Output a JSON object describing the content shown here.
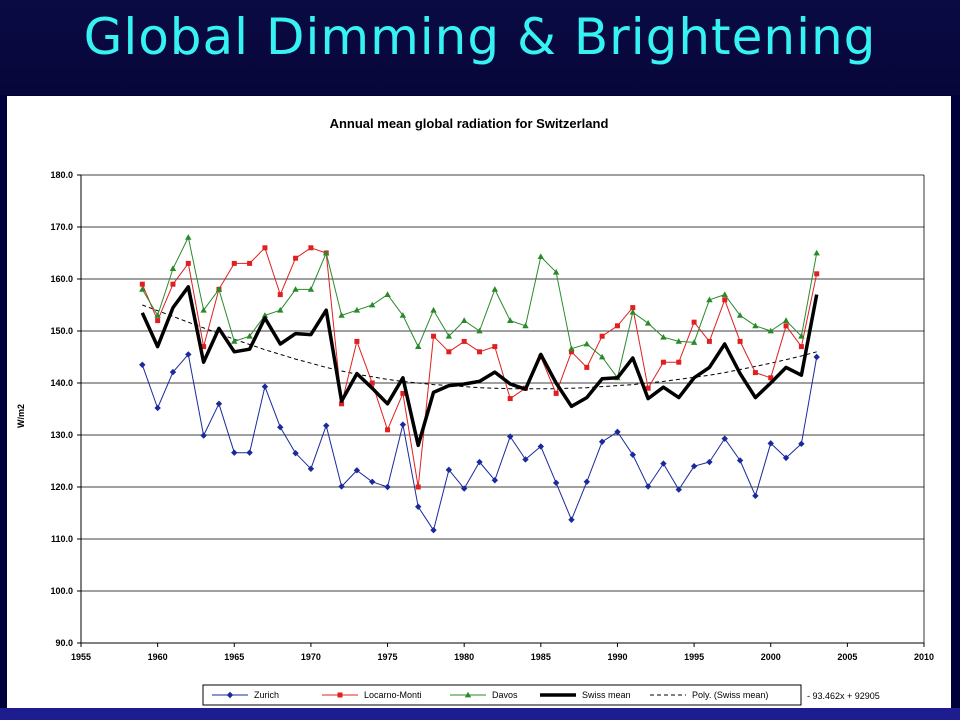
{
  "slide": {
    "title": "Global Dimming & Brightening"
  },
  "chart_data": {
    "type": "line",
    "title": "Annual mean global radiation for Switzerland",
    "xlabel": "",
    "ylabel": "W/m2",
    "xlim": [
      1955,
      2010
    ],
    "ylim": [
      90,
      180
    ],
    "x_ticks": [
      "1955",
      "1960",
      "1965",
      "1970",
      "1975",
      "1980",
      "1985",
      "1990",
      "1995",
      "2000",
      "2005",
      "2010"
    ],
    "y_ticks": [
      "90.0",
      "100.0",
      "110.0",
      "120.0",
      "130.0",
      "140.0",
      "150.0",
      "160.0",
      "170.0",
      "180.0"
    ],
    "grid": "horizontal",
    "legend_position": "bottom",
    "x": [
      1959,
      1960,
      1961,
      1962,
      1963,
      1964,
      1965,
      1966,
      1967,
      1968,
      1969,
      1970,
      1971,
      1972,
      1973,
      1974,
      1975,
      1976,
      1977,
      1978,
      1979,
      1980,
      1981,
      1982,
      1983,
      1984,
      1985,
      1986,
      1987,
      1988,
      1989,
      1990,
      1991,
      1992,
      1993,
      1994,
      1995,
      1996,
      1997,
      1998,
      1999,
      2000,
      2001,
      2002,
      2003
    ],
    "series": [
      {
        "name": "Zurich",
        "color": "#1a2a9c",
        "marker": "diamond",
        "width": 1,
        "values": [
          143.5,
          135.2,
          142.1,
          145.5,
          129.9,
          136.0,
          126.6,
          126.6,
          139.3,
          131.5,
          126.5,
          123.5,
          131.8,
          120.1,
          123.2,
          121.0,
          120.0,
          132.0,
          116.2,
          111.7,
          123.3,
          119.7,
          124.8,
          121.3,
          129.7,
          125.3,
          127.8,
          120.8,
          113.7,
          121.0,
          128.7,
          130.6,
          126.2,
          120.1,
          124.5,
          119.5,
          124.0,
          124.8,
          129.3,
          125.1,
          118.3,
          128.4,
          125.6,
          128.3,
          145.0
        ]
      },
      {
        "name": "Locarno-Monti",
        "color": "#e02020",
        "marker": "square",
        "width": 1,
        "values": [
          159.0,
          152.0,
          159.0,
          163.0,
          147.0,
          158.0,
          163.0,
          163.0,
          166.0,
          157.0,
          164.0,
          166.0,
          165.0,
          136.0,
          148.0,
          140.0,
          131.0,
          138.0,
          120.0,
          149.0,
          146.0,
          148.0,
          146.0,
          147.0,
          137.0,
          139.0,
          145.0,
          138.0,
          146.0,
          143.0,
          149.0,
          151.0,
          154.5,
          139.0,
          144.0,
          144.0,
          151.7,
          148.0,
          156.0,
          148.0,
          142.0,
          141.0,
          151.0,
          147.0,
          161.0
        ]
      },
      {
        "name": "Davos",
        "color": "#2a8a2a",
        "marker": "triangle",
        "width": 1,
        "values": [
          158.0,
          153.0,
          162.0,
          168.0,
          154.0,
          158.0,
          148.0,
          149.0,
          153.0,
          154.0,
          158.0,
          158.0,
          165.0,
          153.0,
          154.0,
          155.0,
          157.0,
          153.0,
          147.0,
          154.0,
          149.0,
          152.0,
          150.0,
          158.0,
          152.0,
          151.0,
          164.3,
          161.3,
          146.6,
          147.5,
          145.0,
          141.0,
          153.6,
          151.5,
          148.8,
          148.0,
          147.8,
          156.0,
          157.0,
          153.0,
          151.0,
          150.0,
          152.0,
          149.0,
          165.0
        ]
      },
      {
        "name": "Swiss mean",
        "color": "#000000",
        "marker": "none",
        "width": 3.5,
        "values": [
          153.5,
          147.0,
          154.5,
          158.5,
          144.0,
          150.5,
          146.0,
          146.5,
          152.5,
          147.5,
          149.5,
          149.3,
          154.0,
          136.5,
          141.8,
          139.0,
          136.0,
          141.0,
          128.0,
          138.2,
          139.5,
          139.8,
          140.3,
          142.1,
          139.8,
          138.8,
          145.5,
          140.0,
          135.5,
          137.2,
          140.8,
          141.0,
          144.8,
          137.0,
          139.2,
          137.2,
          141.0,
          143.0,
          147.5,
          141.8,
          137.2,
          140.0,
          143.0,
          141.5,
          157.0
        ]
      },
      {
        "name": "Poly. (Swiss mean)",
        "color": "#000000",
        "marker": "none",
        "width": 1,
        "dash": "4,3",
        "values": [
          155.0,
          153.9,
          152.8,
          151.7,
          150.6,
          149.5,
          148.4,
          147.4,
          146.4,
          145.5,
          144.6,
          143.8,
          143.0,
          142.3,
          141.7,
          141.2,
          140.7,
          140.3,
          140.0,
          139.7,
          139.5,
          139.3,
          139.1,
          139.0,
          138.9,
          138.9,
          138.9,
          138.9,
          139.0,
          139.1,
          139.3,
          139.5,
          139.7,
          140.0,
          140.3,
          140.7,
          141.1,
          141.5,
          142.0,
          142.6,
          143.2,
          143.8,
          144.5,
          145.2,
          146.0
        ]
      }
    ],
    "annotation": "- 93.462x + 92905"
  }
}
